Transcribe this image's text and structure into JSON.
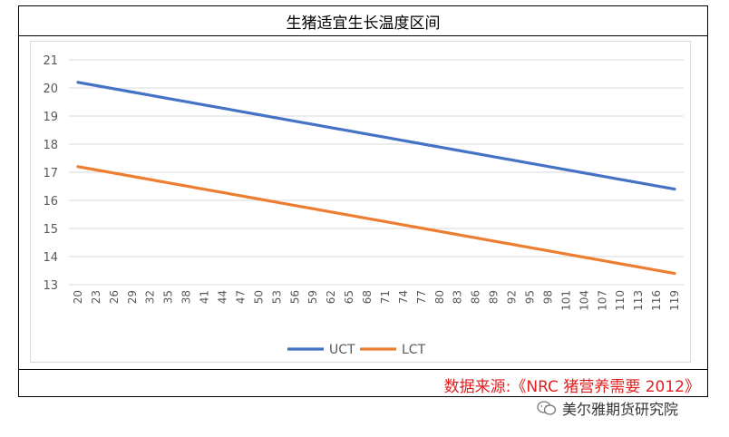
{
  "chart_data": {
    "type": "line",
    "title": "生猪适宜生长温度区间",
    "categories": [
      "20",
      "23",
      "26",
      "29",
      "32",
      "35",
      "38",
      "41",
      "44",
      "47",
      "50",
      "53",
      "56",
      "59",
      "62",
      "65",
      "68",
      "71",
      "74",
      "77",
      "80",
      "83",
      "86",
      "89",
      "92",
      "95",
      "98",
      "101",
      "104",
      "107",
      "110",
      "113",
      "116",
      "119"
    ],
    "ylim": [
      13,
      21
    ],
    "yticks": [
      13,
      14,
      15,
      16,
      17,
      18,
      19,
      20,
      21
    ],
    "series": [
      {
        "name": "UCT",
        "color": "#4472c4",
        "start": 20.2,
        "end": 16.4
      },
      {
        "name": "LCT",
        "color": "#ed7d31",
        "start": 17.2,
        "end": 13.4
      }
    ],
    "legend": "bottom-center",
    "grid": true
  },
  "source_note": "数据来源:《NRC 猪营养需要 2012》",
  "watermark": "美尔雅期货研究院"
}
